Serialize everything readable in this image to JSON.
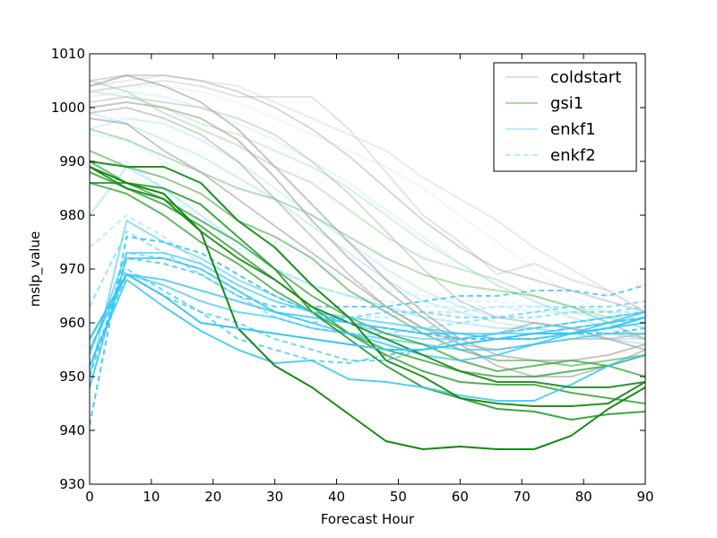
{
  "chart_data": {
    "type": "line",
    "title": "",
    "xlabel": "Forecast Hour",
    "ylabel": "mslp_value",
    "xlim": [
      0,
      90
    ],
    "ylim": [
      930,
      1010
    ],
    "xticks": [
      0,
      10,
      20,
      30,
      40,
      50,
      60,
      70,
      80,
      90
    ],
    "yticks": [
      930,
      940,
      950,
      960,
      970,
      980,
      990,
      1000,
      1010
    ],
    "grid": false,
    "legend_position": "upper right",
    "legend": [
      {
        "label": "coldstart",
        "color": "#a0a0a0",
        "dash": "solid"
      },
      {
        "label": "gsi1",
        "color": "#138a13",
        "dash": "solid"
      },
      {
        "label": "enkf1",
        "color": "#37c6f4",
        "dash": "solid"
      },
      {
        "label": "enkf2",
        "color": "#37c6f4",
        "dash": "dashed"
      }
    ],
    "x": [
      0,
      6,
      12,
      18,
      24,
      30,
      36,
      42,
      48,
      54,
      60,
      66,
      72,
      78,
      84,
      90
    ],
    "series": [
      {
        "group": "coldstart",
        "color": "#a0a0a0",
        "dash": "solid",
        "opacity": 0.6,
        "values": [
          1000,
          1001,
          1000,
          998,
          994,
          987,
          979,
          972,
          966,
          961,
          956,
          952,
          950,
          950,
          952,
          955
        ]
      },
      {
        "group": "coldstart",
        "color": "#a0a0a0",
        "dash": "solid",
        "opacity": 0.6,
        "values": [
          1004,
          1006,
          1004,
          1001,
          996,
          989,
          982,
          975,
          968,
          962,
          957,
          954,
          953,
          953,
          954,
          956
        ]
      },
      {
        "group": "coldstart",
        "color": "#a0a0a0",
        "dash": "solid",
        "opacity": 0.6,
        "values": [
          998,
          997,
          992,
          988,
          983,
          978,
          973,
          968,
          963,
          959,
          957,
          958,
          960,
          959,
          957,
          955
        ]
      },
      {
        "group": "coldstart",
        "color": "#b0b0b0",
        "dash": "solid",
        "opacity": 0.5,
        "values": [
          1005,
          1006,
          1006,
          1005,
          1003,
          1000,
          996,
          991,
          985,
          979,
          974,
          970,
          968,
          966,
          964,
          962
        ]
      },
      {
        "group": "coldstart",
        "color": "#c0c0c0",
        "dash": "solid",
        "opacity": 0.45,
        "values": [
          1003,
          1004,
          1005,
          1004,
          1002,
          1002,
          1002,
          996,
          988,
          980,
          975,
          969,
          971,
          968,
          966,
          962
        ]
      },
      {
        "group": "coldstart",
        "color": "#d0d0d0",
        "dash": "solid",
        "opacity": 0.45,
        "values": [
          1004,
          1005,
          1006,
          1005,
          1004,
          1001,
          998,
          995,
          992,
          987,
          983,
          979,
          974,
          970,
          966,
          962
        ]
      },
      {
        "group": "coldstart",
        "color": "#b8b8b8",
        "dash": "solid",
        "opacity": 0.5,
        "values": [
          1001,
          1002,
          1001,
          1000,
          998,
          995,
          990,
          984,
          977,
          970,
          964,
          961,
          960,
          959,
          958,
          957
        ]
      },
      {
        "group": "coldstart",
        "color": "#aaaaaa",
        "dash": "solid",
        "opacity": 0.55,
        "values": [
          999,
          1000,
          998,
          995,
          990,
          983,
          976,
          969,
          963,
          959,
          956,
          955,
          956,
          957,
          957,
          958
        ]
      },
      {
        "group": "gsi1",
        "color": "#138a13",
        "dash": "solid",
        "opacity": 1.0,
        "values": [
          989,
          986,
          984,
          977,
          959,
          952,
          948,
          943,
          938,
          936.5,
          937,
          936.5,
          936.5,
          939,
          944,
          948
        ]
      },
      {
        "group": "gsi1",
        "color": "#138a13",
        "dash": "solid",
        "opacity": 0.95,
        "values": [
          990,
          989,
          989,
          986,
          979,
          974,
          967,
          961,
          953,
          950,
          946,
          945,
          944.5,
          944.5,
          945,
          949
        ]
      },
      {
        "group": "gsi1",
        "color": "#1f951f",
        "dash": "solid",
        "opacity": 0.85,
        "values": [
          986,
          986,
          985,
          982,
          976,
          970,
          962,
          957,
          952,
          948,
          946,
          944,
          943.5,
          942,
          943,
          943.5
        ]
      },
      {
        "group": "gsi1",
        "color": "#2a9a2a",
        "dash": "solid",
        "opacity": 0.8,
        "values": [
          988,
          985,
          982,
          978,
          973,
          968,
          963,
          958,
          954,
          951,
          949,
          948.5,
          948.5,
          947,
          946,
          945
        ]
      },
      {
        "group": "gsi1",
        "color": "#2f9d2f",
        "dash": "solid",
        "opacity": 0.75,
        "values": [
          986,
          984,
          980,
          975,
          971,
          966,
          962,
          958,
          955,
          953,
          951,
          950,
          950,
          951,
          952,
          954
        ]
      },
      {
        "group": "gsi1",
        "color": "#3aa33a",
        "dash": "solid",
        "opacity": 0.75,
        "values": [
          990,
          986,
          983,
          979,
          975,
          970,
          965,
          961,
          958,
          956,
          953,
          951,
          952,
          953,
          952,
          950
        ]
      },
      {
        "group": "gsi1",
        "color": "#138a13",
        "dash": "solid",
        "opacity": 0.9,
        "values": [
          989,
          985,
          983,
          977,
          972,
          968,
          963,
          960,
          957,
          954,
          951,
          949,
          949,
          948,
          948,
          949
        ]
      },
      {
        "group": "gsi1",
        "color": "#4aa84a",
        "dash": "solid",
        "opacity": 0.6,
        "values": [
          992,
          989,
          987,
          984,
          979,
          976,
          972,
          966,
          962,
          958,
          955,
          953,
          953,
          952,
          953,
          954
        ]
      },
      {
        "group": "gsi1",
        "color": "#6abf6a",
        "dash": "solid",
        "opacity": 0.5,
        "values": [
          996,
          994,
          991,
          988,
          985,
          983,
          980,
          976,
          972,
          969,
          967,
          966,
          965,
          963,
          960,
          957
        ]
      },
      {
        "group": "gsi1",
        "color": "#8fd08f",
        "dash": "solid",
        "opacity": 0.45,
        "values": [
          1005,
          1003,
          999,
          996,
          993,
          989,
          986,
          981,
          976,
          972,
          970,
          968,
          965,
          963,
          961,
          959
        ]
      },
      {
        "group": "gsi1",
        "color": "#a0d8a0",
        "dash": "solid",
        "opacity": 0.4,
        "values": [
          1003,
          1002,
          1000,
          997,
          995,
          992,
          989,
          985,
          980,
          975,
          971,
          967,
          964,
          961,
          959,
          957
        ]
      },
      {
        "group": "enkf1",
        "color": "#37c6f4",
        "dash": "solid",
        "opacity": 1.0,
        "values": [
          957,
          969,
          965,
          960,
          959,
          958,
          957,
          956,
          955,
          955,
          956,
          957,
          958,
          958,
          959,
          961
        ]
      },
      {
        "group": "enkf1",
        "color": "#37c6f4",
        "dash": "solid",
        "opacity": 0.85,
        "values": [
          952,
          968,
          963,
          958.5,
          955,
          952.5,
          953,
          949.5,
          949,
          948,
          946.5,
          945.5,
          945.5,
          948.5,
          952,
          954
        ]
      },
      {
        "group": "enkf1",
        "color": "#37c6f4",
        "dash": "solid",
        "opacity": 0.8,
        "values": [
          948,
          972,
          972,
          970,
          966,
          962,
          960,
          958,
          956,
          954,
          953,
          954,
          956,
          958,
          960,
          962
        ]
      },
      {
        "group": "enkf1",
        "color": "#4fcef6",
        "dash": "solid",
        "opacity": 0.75,
        "values": [
          954,
          973,
          973,
          971,
          967,
          964,
          962,
          961,
          960,
          959,
          958,
          958,
          958,
          959,
          960,
          961
        ]
      },
      {
        "group": "enkf1",
        "color": "#5fd3f7",
        "dash": "solid",
        "opacity": 0.7,
        "values": [
          950,
          979,
          975,
          972,
          968,
          965,
          962,
          960,
          958,
          957,
          957,
          958,
          959,
          960,
          961,
          962
        ]
      },
      {
        "group": "enkf1",
        "color": "#37c6f4",
        "dash": "solid",
        "opacity": 0.8,
        "values": [
          955,
          969,
          968,
          966,
          964,
          962,
          961,
          960,
          959,
          958,
          958,
          957,
          957,
          958,
          959,
          960
        ]
      },
      {
        "group": "enkf1",
        "color": "#37c6f4",
        "dash": "solid",
        "opacity": 0.7,
        "values": [
          957,
          969,
          967,
          964,
          962,
          961,
          959,
          958,
          957,
          956,
          955,
          955,
          956,
          957,
          958,
          958
        ]
      },
      {
        "group": "enkf1",
        "color": "#7fdcf9",
        "dash": "solid",
        "opacity": 0.5,
        "values": [
          980,
          989,
          985,
          980,
          975,
          970,
          967,
          965,
          963,
          961,
          960,
          959,
          959,
          958,
          957,
          956
        ]
      },
      {
        "group": "enkf1",
        "color": "#9fe5fb",
        "dash": "solid",
        "opacity": 0.45,
        "values": [
          996,
          998,
          997,
          994,
          990,
          985,
          980,
          975,
          970,
          966,
          963,
          961,
          960,
          959,
          958,
          958
        ]
      },
      {
        "group": "enkf1",
        "color": "#b0eafc",
        "dash": "solid",
        "opacity": 0.4,
        "values": [
          1002,
          1003,
          1002,
          1000,
          997,
          994,
          990,
          986,
          981,
          976,
          971,
          967,
          964,
          962,
          960,
          959
        ]
      },
      {
        "group": "enkf1",
        "color": "#c5f0fd",
        "dash": "solid",
        "opacity": 0.4,
        "values": [
          1003,
          1004,
          1004,
          1003,
          1001,
          998,
          995,
          992,
          989,
          985,
          980,
          975,
          970,
          965,
          962,
          960
        ]
      },
      {
        "group": "enkf1",
        "color": "#8fe0fa",
        "dash": "solid",
        "opacity": 0.45,
        "values": [
          999,
          997,
          994,
          991,
          987,
          983,
          978,
          973,
          968,
          964,
          962,
          960,
          959,
          958,
          957,
          957
        ]
      },
      {
        "group": "enkf2",
        "color": "#37c6f4",
        "dash": "dashed",
        "opacity": 0.9,
        "values": [
          941,
          976,
          975,
          973,
          969,
          965,
          962,
          960,
          959,
          958,
          957,
          957,
          957,
          958,
          958,
          959
        ]
      },
      {
        "group": "enkf2",
        "color": "#37c6f4",
        "dash": "dashed",
        "opacity": 0.8,
        "values": [
          950,
          972,
          971,
          969,
          965,
          963,
          963,
          963,
          963,
          964,
          965,
          965,
          966,
          966,
          965,
          967
        ]
      },
      {
        "group": "enkf2",
        "color": "#37c6f4",
        "dash": "dashed",
        "opacity": 0.75,
        "values": [
          955,
          970,
          966,
          962,
          957,
          955,
          953,
          952.5,
          954,
          955,
          956,
          957,
          958,
          959,
          960,
          961
        ]
      },
      {
        "group": "enkf2",
        "color": "#4fcef6",
        "dash": "dashed",
        "opacity": 0.7,
        "values": [
          948,
          973,
          972,
          970,
          966,
          962,
          960,
          961,
          962,
          962,
          961,
          961,
          962,
          963,
          963,
          964
        ]
      },
      {
        "group": "enkf2",
        "color": "#5fd3f7",
        "dash": "dashed",
        "opacity": 0.65,
        "values": [
          963,
          977,
          973,
          969,
          965,
          961,
          959,
          958,
          958,
          959,
          960,
          961,
          961,
          962,
          962,
          963
        ]
      },
      {
        "group": "enkf2",
        "color": "#37c6f4",
        "dash": "dashed",
        "opacity": 0.7,
        "values": [
          952,
          969,
          965,
          962,
          960,
          957,
          955,
          953,
          953,
          955,
          957,
          958,
          959,
          960,
          961,
          962
        ]
      },
      {
        "group": "enkf2",
        "color": "#7fdcf9",
        "dash": "dashed",
        "opacity": 0.5,
        "values": [
          974,
          980,
          976,
          971,
          967,
          964,
          962,
          961,
          961,
          962,
          962,
          963,
          963,
          963,
          962,
          962
        ]
      },
      {
        "group": "enkf2",
        "color": "#9fe5fb",
        "dash": "dashed",
        "opacity": 0.45,
        "values": [
          989,
          990,
          985,
          979,
          974,
          970,
          967,
          965,
          964,
          963,
          963,
          963,
          962,
          962,
          961,
          960
        ]
      },
      {
        "group": "enkf2",
        "color": "#b0eafc",
        "dash": "dashed",
        "opacity": 0.4,
        "values": [
          995,
          994,
          990,
          985,
          980,
          975,
          971,
          968,
          966,
          965,
          964,
          964,
          963,
          963,
          962,
          961
        ]
      }
    ]
  }
}
